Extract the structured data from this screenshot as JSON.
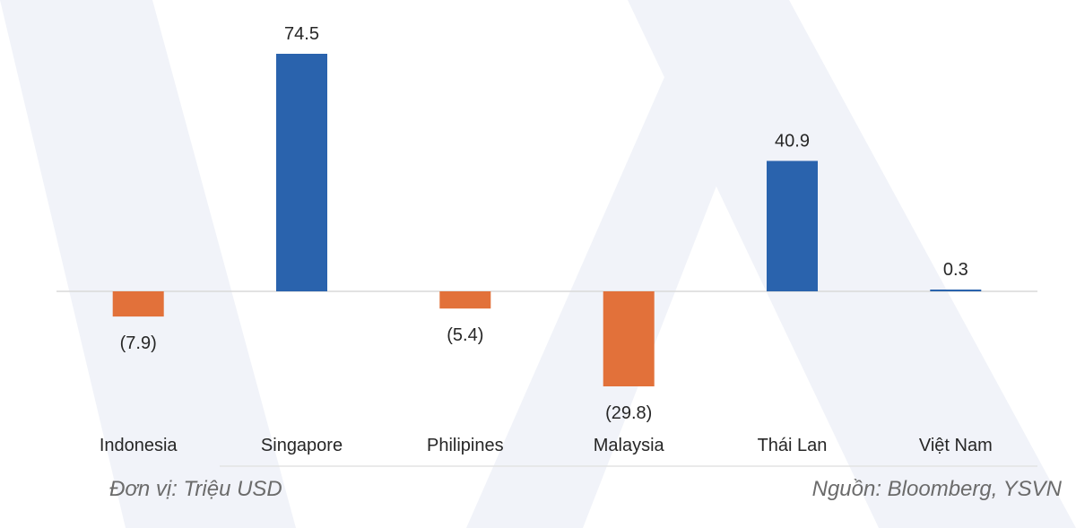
{
  "chart_data": {
    "type": "bar",
    "categories": [
      "Indonesia",
      "Singapore",
      "Philipines",
      "Malaysia",
      "Thái Lan",
      "Việt Nam"
    ],
    "values": [
      -7.9,
      74.5,
      -5.4,
      -29.8,
      40.9,
      0.3
    ],
    "value_labels": [
      "(7.9)",
      "74.5",
      "(5.4)",
      "(29.8)",
      "40.9",
      "0.3"
    ],
    "positive_color": "#2a63ad",
    "negative_color": "#e2713a",
    "grid": false,
    "legend": "none"
  },
  "footer": {
    "unit": "Đơn vị: Triệu USD",
    "source": "Nguồn: Bloomberg, YSVN"
  },
  "colors": {
    "watermark": "#f1f3f9",
    "axis_line": "#d9d9d9",
    "label_text": "#262626"
  }
}
